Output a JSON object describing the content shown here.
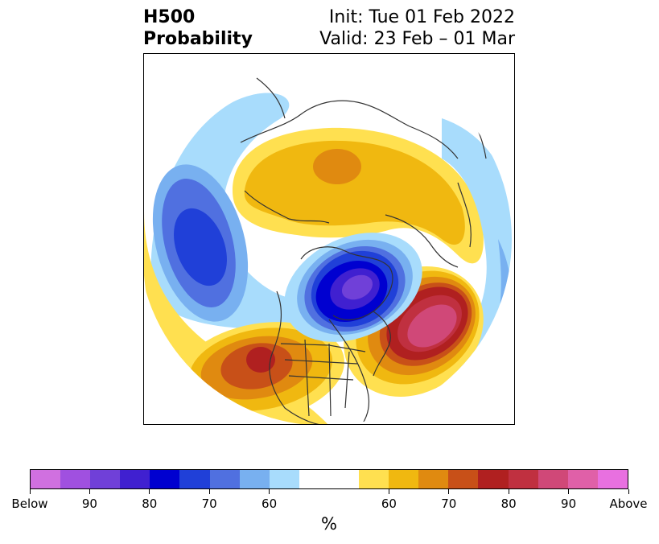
{
  "title": {
    "left_line1": "H500",
    "left_line2": "Probability",
    "right_line1": "Init: Tue 01 Feb 2022",
    "right_line2": "Valid: 23 Feb – 01 Mar"
  },
  "colorbar": {
    "unit": "%",
    "colors": [
      "#d070e0",
      "#a050e0",
      "#7040d8",
      "#4020d0",
      "#0000d0",
      "#2040d8",
      "#5070e0",
      "#78b0f0",
      "#a8dcfc",
      "#ffffff",
      "#ffffff",
      "#ffe050",
      "#f0b810",
      "#e08a10",
      "#c85018",
      "#b02020",
      "#c03040",
      "#d04878",
      "#e060a8",
      "#e870e0"
    ],
    "labels": [
      "Below",
      "90",
      "80",
      "70",
      "60",
      "60",
      "70",
      "80",
      "90",
      "Above"
    ]
  },
  "map": {
    "anomalies": [
      {
        "name": "below-alaska-gulf",
        "type": "below",
        "peak": "80"
      },
      {
        "name": "below-hudson-bay",
        "type": "below",
        "peak": "Below"
      },
      {
        "name": "below-norway-sea",
        "type": "below",
        "peak": "60"
      },
      {
        "name": "above-western-us",
        "type": "above",
        "peak": "80"
      },
      {
        "name": "above-north-atlantic",
        "type": "above",
        "peak": "90"
      },
      {
        "name": "above-siberia",
        "type": "above",
        "peak": "70"
      }
    ]
  }
}
